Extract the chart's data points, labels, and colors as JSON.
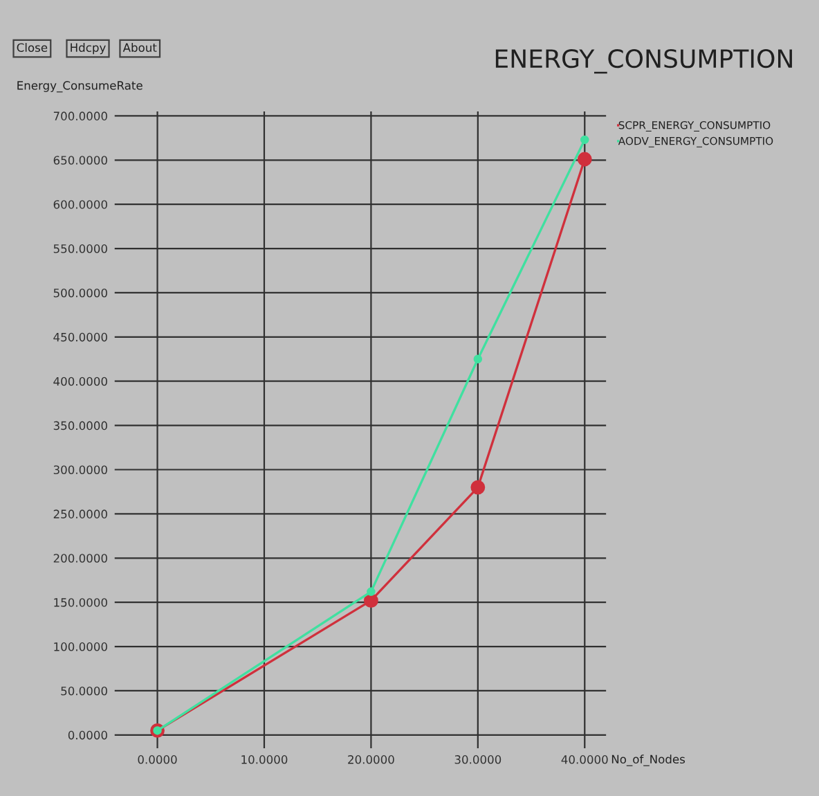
{
  "chart_data": {
    "type": "line",
    "title": "ENERGY_CONSUMPTION",
    "xlabel": "No_of_Nodes",
    "ylabel": "Energy_ConsumeRate",
    "annotations": [
      "Close",
      "Hdcpy",
      "About"
    ],
    "x": [
      0,
      20,
      30,
      40
    ],
    "series": [
      {
        "name": "SCPR_ENERGY_CONSUMPTIO",
        "color": "#d0303c",
        "values": [
          5,
          152,
          280,
          651
        ]
      },
      {
        "name": "AODV_ENERGY_CONSUMPTIO",
        "color": "#40e0a0",
        "values": [
          5,
          162,
          425,
          673
        ]
      }
    ],
    "xlim": [
      -4,
      42
    ],
    "ylim": [
      -15,
      705
    ],
    "xticks": [
      {
        "value": 0,
        "label": "0.0000"
      },
      {
        "value": 10,
        "label": "10.0000"
      },
      {
        "value": 20,
        "label": "20.0000"
      },
      {
        "value": 30,
        "label": "30.0000"
      },
      {
        "value": 40,
        "label": "40.0000"
      }
    ],
    "yticks": [
      {
        "value": 0,
        "label": "0.0000"
      },
      {
        "value": 50,
        "label": "50.0000"
      },
      {
        "value": 100,
        "label": "100.0000"
      },
      {
        "value": 150,
        "label": "150.0000"
      },
      {
        "value": 200,
        "label": "200.0000"
      },
      {
        "value": 250,
        "label": "250.0000"
      },
      {
        "value": 300,
        "label": "300.0000"
      },
      {
        "value": 350,
        "label": "350.0000"
      },
      {
        "value": 400,
        "label": "400.0000"
      },
      {
        "value": 450,
        "label": "450.0000"
      },
      {
        "value": 500,
        "label": "500.0000"
      },
      {
        "value": 550,
        "label": "550.0000"
      },
      {
        "value": 600,
        "label": "600.0000"
      },
      {
        "value": 650,
        "label": "650.0000"
      },
      {
        "value": 700,
        "label": "700.0000"
      }
    ],
    "grid": true,
    "legend": "top right",
    "marker": "circle",
    "line_style": "solid"
  }
}
